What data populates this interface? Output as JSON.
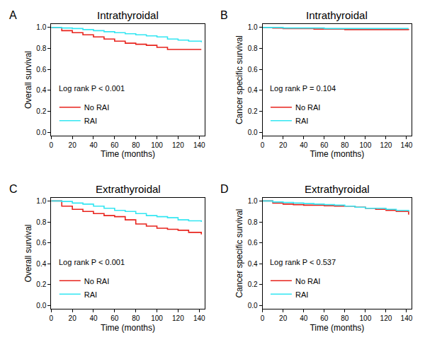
{
  "chart_data": [
    {
      "type": "line",
      "panel_label": "A",
      "title": "Intrathyroidal",
      "x_label": "Time (months)",
      "y_label": "Overall survival",
      "annotations": [
        "Log rank P < 0.001"
      ],
      "x": [
        0,
        10,
        20,
        30,
        40,
        50,
        60,
        70,
        80,
        90,
        100,
        110,
        120,
        130,
        142
      ],
      "series": [
        {
          "name": "No RAI",
          "color": "#e8231c",
          "values": [
            1.0,
            0.97,
            0.95,
            0.93,
            0.91,
            0.89,
            0.87,
            0.85,
            0.84,
            0.83,
            0.81,
            0.79,
            0.79,
            0.79,
            0.79
          ]
        },
        {
          "name": "RAI",
          "color": "#33e6f2",
          "values": [
            1.0,
            0.995,
            0.99,
            0.98,
            0.97,
            0.96,
            0.95,
            0.94,
            0.93,
            0.92,
            0.91,
            0.89,
            0.88,
            0.87,
            0.86
          ]
        }
      ],
      "xlim": [
        0,
        145
      ],
      "xticks": [
        0,
        20,
        40,
        60,
        80,
        100,
        120,
        140
      ],
      "ylim": [
        -0.03,
        1.03
      ],
      "yticks": [
        {
          "value": 0,
          "label": "0.0"
        },
        {
          "value": 0.2,
          "label": "0.2"
        },
        {
          "value": 0.4,
          "label": "0.4"
        },
        {
          "value": 0.6,
          "label": "0.6"
        },
        {
          "value": 0.8,
          "label": "0.8"
        },
        {
          "value": 1,
          "label": "1.0"
        }
      ],
      "grid": false,
      "legend": "lower left",
      "line_style": "step"
    },
    {
      "type": "line",
      "panel_label": "B",
      "title": "Intrathyroidal",
      "x_label": "Time (months)",
      "y_label": "Cancer specific survival",
      "annotations": [
        "Log rank P = 0.104"
      ],
      "x": [
        0,
        10,
        20,
        30,
        40,
        50,
        60,
        70,
        80,
        90,
        100,
        110,
        120,
        130,
        142
      ],
      "series": [
        {
          "name": "No RAI",
          "color": "#e8231c",
          "values": [
            1.0,
            0.995,
            0.99,
            0.99,
            0.99,
            0.985,
            0.985,
            0.985,
            0.98,
            0.98,
            0.98,
            0.98,
            0.98,
            0.98,
            0.975
          ]
        },
        {
          "name": "RAI",
          "color": "#33e6f2",
          "values": [
            1.0,
            1.0,
            0.995,
            0.995,
            0.995,
            0.995,
            0.99,
            0.99,
            0.99,
            0.99,
            0.99,
            0.99,
            0.99,
            0.99,
            0.99
          ]
        }
      ],
      "xlim": [
        0,
        145
      ],
      "xticks": [
        0,
        20,
        40,
        60,
        80,
        100,
        120,
        140
      ],
      "ylim": [
        -0.03,
        1.03
      ],
      "yticks": [
        {
          "value": 0,
          "label": "0.0"
        },
        {
          "value": 0.2,
          "label": "0.2"
        },
        {
          "value": 0.4,
          "label": "0.4"
        },
        {
          "value": 0.6,
          "label": "0.6"
        },
        {
          "value": 0.8,
          "label": "0.8"
        },
        {
          "value": 1,
          "label": "1.0"
        }
      ],
      "grid": false,
      "legend": "lower left",
      "line_style": "step"
    },
    {
      "type": "line",
      "panel_label": "C",
      "title": "Extrathyroidal",
      "x_label": "Time (months)",
      "y_label": "Overall survival",
      "annotations": [
        "Log rank P < 0.001"
      ],
      "x": [
        0,
        10,
        20,
        30,
        40,
        50,
        60,
        70,
        80,
        90,
        100,
        110,
        120,
        130,
        142
      ],
      "series": [
        {
          "name": "No RAI",
          "color": "#e8231c",
          "values": [
            1.0,
            0.95,
            0.92,
            0.9,
            0.88,
            0.86,
            0.85,
            0.82,
            0.78,
            0.76,
            0.74,
            0.73,
            0.72,
            0.7,
            0.68
          ]
        },
        {
          "name": "RAI",
          "color": "#33e6f2",
          "values": [
            1.0,
            0.995,
            0.98,
            0.97,
            0.95,
            0.93,
            0.91,
            0.9,
            0.88,
            0.86,
            0.85,
            0.84,
            0.82,
            0.81,
            0.8
          ]
        }
      ],
      "xlim": [
        0,
        145
      ],
      "xticks": [
        0,
        20,
        40,
        60,
        80,
        100,
        120,
        140
      ],
      "ylim": [
        -0.03,
        1.03
      ],
      "yticks": [
        {
          "value": 0,
          "label": "0.0"
        },
        {
          "value": 0.2,
          "label": "0.2"
        },
        {
          "value": 0.4,
          "label": "0.4"
        },
        {
          "value": 0.6,
          "label": "0.6"
        },
        {
          "value": 0.8,
          "label": "0.8"
        },
        {
          "value": 1,
          "label": "1.0"
        }
      ],
      "grid": false,
      "legend": "lower left",
      "line_style": "step"
    },
    {
      "type": "line",
      "panel_label": "D",
      "title": "Extrathyroidal",
      "x_label": "Time (months)",
      "y_label": "Cancer specific survival",
      "annotations": [
        "Log rank P < 0.537"
      ],
      "x": [
        0,
        10,
        20,
        30,
        40,
        50,
        60,
        70,
        80,
        90,
        100,
        110,
        120,
        130,
        142
      ],
      "series": [
        {
          "name": "No RAI",
          "color": "#e8231c",
          "values": [
            1.0,
            0.98,
            0.97,
            0.965,
            0.96,
            0.96,
            0.955,
            0.95,
            0.95,
            0.94,
            0.93,
            0.92,
            0.91,
            0.9,
            0.87
          ]
        },
        {
          "name": "RAI",
          "color": "#33e6f2",
          "values": [
            1.0,
            0.99,
            0.985,
            0.98,
            0.975,
            0.97,
            0.965,
            0.96,
            0.95,
            0.94,
            0.93,
            0.93,
            0.92,
            0.91,
            0.9
          ]
        }
      ],
      "xlim": [
        0,
        145
      ],
      "xticks": [
        0,
        20,
        40,
        60,
        80,
        100,
        120,
        140
      ],
      "ylim": [
        -0.03,
        1.03
      ],
      "yticks": [
        {
          "value": 0,
          "label": "0.0"
        },
        {
          "value": 0.2,
          "label": "0.2"
        },
        {
          "value": 0.4,
          "label": "0.4"
        },
        {
          "value": 0.6,
          "label": "0.6"
        },
        {
          "value": 0.8,
          "label": "0.8"
        },
        {
          "value": 1,
          "label": "1.0"
        }
      ],
      "grid": false,
      "legend": "lower left",
      "line_style": "step"
    }
  ]
}
